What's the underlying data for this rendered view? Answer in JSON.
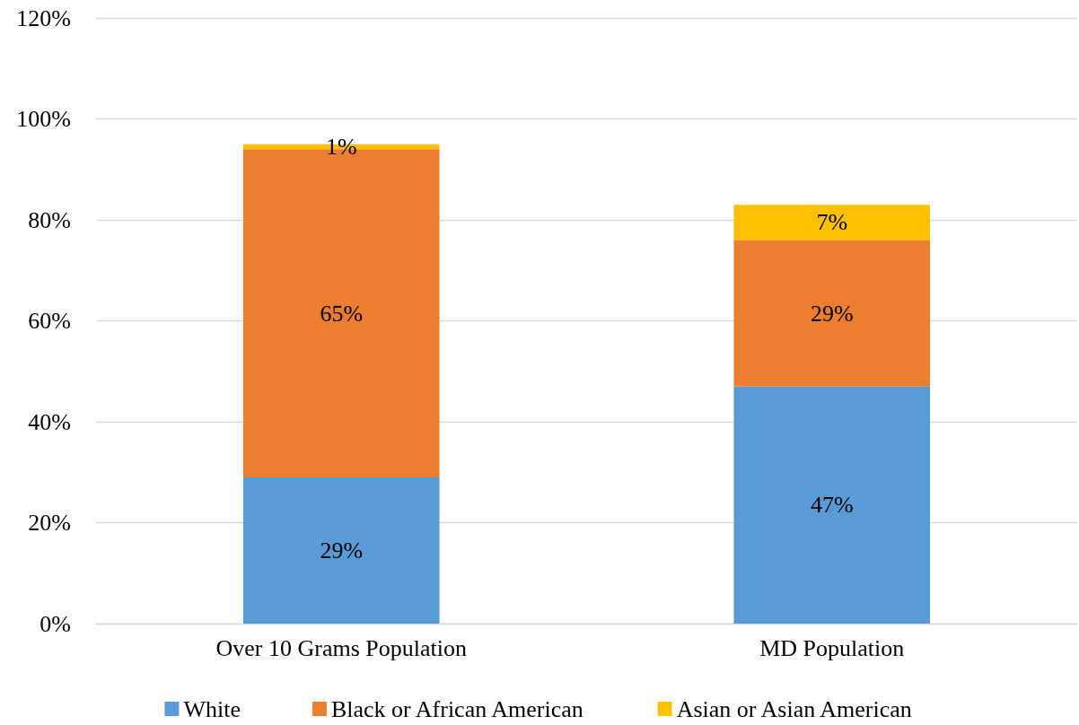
{
  "chart_data": {
    "type": "bar",
    "stacked": true,
    "categories": [
      "Over 10 Grams Population",
      "MD Population"
    ],
    "series": [
      {
        "name": "White",
        "color": "#5b9bd5",
        "values": [
          29,
          47
        ],
        "value_labels": [
          "29%",
          "47%"
        ]
      },
      {
        "name": "Black or African American",
        "color": "#ed7d31",
        "values": [
          65,
          29
        ],
        "value_labels": [
          "65%",
          "29%"
        ]
      },
      {
        "name": "Asian or Asian American",
        "color": "#ffc000",
        "values": [
          1,
          7
        ],
        "value_labels": [
          "1%",
          "7%"
        ]
      }
    ],
    "ylim": [
      0,
      120
    ],
    "yticks": [
      {
        "value": 0,
        "label": "0%"
      },
      {
        "value": 20,
        "label": "20%"
      },
      {
        "value": 40,
        "label": "40%"
      },
      {
        "value": 60,
        "label": "60%"
      },
      {
        "value": 80,
        "label": "80%"
      },
      {
        "value": 100,
        "label": "100%"
      },
      {
        "value": 120,
        "label": "120%"
      }
    ],
    "grid": "y",
    "legend": "bottom"
  }
}
